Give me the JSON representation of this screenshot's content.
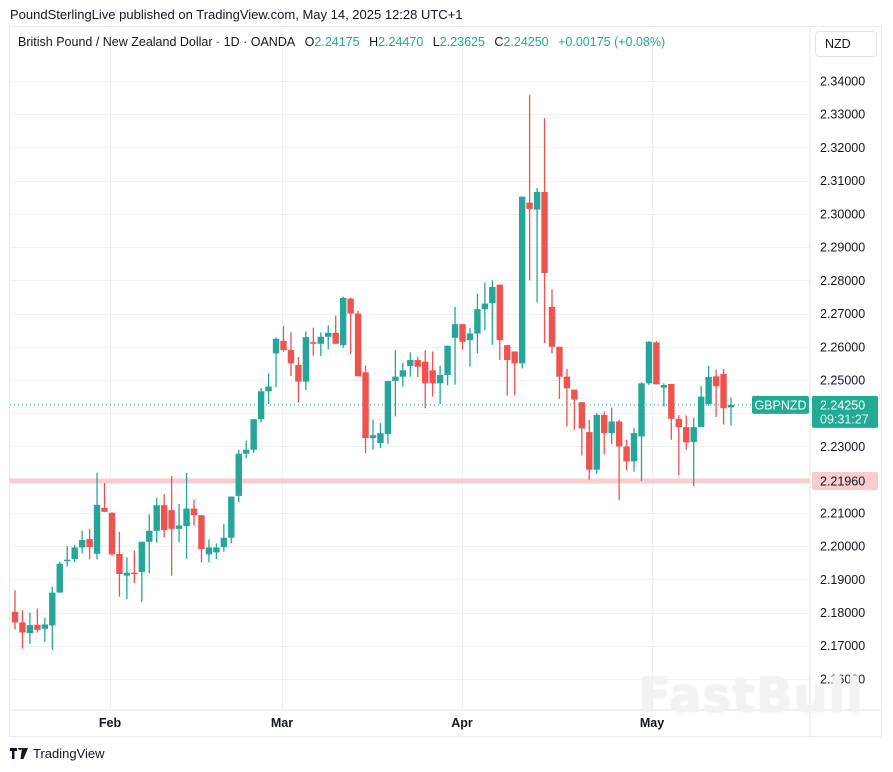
{
  "published": "PoundSterlingLive published on TradingView.com, May 14, 2025 12:28 UTC+1",
  "legend": {
    "title": "British Pound / New Zealand Dollar · 1D · OANDA",
    "o_label": "O",
    "o_value": "2.24175",
    "h_label": "H",
    "h_value": "2.24470",
    "l_label": "L",
    "l_value": "2.23625",
    "c_label": "C",
    "c_value": "2.24250",
    "change": "+0.00175 (+0.08%)"
  },
  "currency_button": "NZD",
  "price_axis": {
    "ticks": [
      "2.34000",
      "2.33000",
      "2.32000",
      "2.31000",
      "2.30000",
      "2.29000",
      "2.28000",
      "2.27000",
      "2.26000",
      "2.25000",
      "2.23000",
      "2.21000",
      "2.20000",
      "2.19000",
      "2.18000",
      "2.17000",
      "2.16000"
    ]
  },
  "time_axis": {
    "labels": [
      "Feb",
      "Mar",
      "Apr",
      "May"
    ]
  },
  "last_price": {
    "symbol": "GBPNZD",
    "price": "2.24250",
    "countdown": "09:31:27"
  },
  "horizontal_line": {
    "price": "2.21960"
  },
  "colors": {
    "up": "#26a69a",
    "down": "#ef5350",
    "hline": "#f9cdd0",
    "grid": "#f0f1f3",
    "accent": "#22ab94"
  },
  "footer": {
    "brand": "TradingView"
  },
  "watermark": "FastBull",
  "chart_data": {
    "type": "candlestick",
    "title": "British Pound / New Zealand Dollar · 1D · OANDA",
    "xlabel": "",
    "ylabel": "NZD",
    "ylim": [
      2.155,
      2.345
    ],
    "grid": true,
    "x_tick_labels": [
      "Feb",
      "Mar",
      "Apr",
      "May"
    ],
    "annotations": [
      {
        "type": "hline",
        "value": 2.2196,
        "label": "2.21960"
      },
      {
        "type": "last_price",
        "value": 2.2425,
        "label": "GBPNZD 2.24250"
      }
    ],
    "candles": [
      {
        "o": 2.1802,
        "h": 2.1867,
        "l": 2.1749,
        "c": 2.177
      },
      {
        "o": 2.177,
        "h": 2.1807,
        "l": 2.1691,
        "c": 2.174
      },
      {
        "o": 2.1738,
        "h": 2.18,
        "l": 2.1706,
        "c": 2.1762
      },
      {
        "o": 2.1763,
        "h": 2.1812,
        "l": 2.174,
        "c": 2.1748
      },
      {
        "o": 2.1751,
        "h": 2.1785,
        "l": 2.1711,
        "c": 2.1764
      },
      {
        "o": 2.1761,
        "h": 2.1878,
        "l": 2.1688,
        "c": 2.186
      },
      {
        "o": 2.186,
        "h": 2.1953,
        "l": 2.186,
        "c": 2.1947
      },
      {
        "o": 2.1955,
        "h": 2.2,
        "l": 2.1938,
        "c": 2.1959
      },
      {
        "o": 2.1961,
        "h": 2.2004,
        "l": 2.1951,
        "c": 2.1996
      },
      {
        "o": 2.1996,
        "h": 2.2046,
        "l": 2.1978,
        "c": 2.2018
      },
      {
        "o": 2.2021,
        "h": 2.2052,
        "l": 2.196,
        "c": 2.1997
      },
      {
        "o": 2.1977,
        "h": 2.2221,
        "l": 2.196,
        "c": 2.2124
      },
      {
        "o": 2.2115,
        "h": 2.219,
        "l": 2.2108,
        "c": 2.2103
      },
      {
        "o": 2.21,
        "h": 2.2102,
        "l": 2.1971,
        "c": 2.1975
      },
      {
        "o": 2.1976,
        "h": 2.2043,
        "l": 2.1848,
        "c": 2.1916
      },
      {
        "o": 2.1911,
        "h": 2.1966,
        "l": 2.184,
        "c": 2.192
      },
      {
        "o": 2.192,
        "h": 2.1987,
        "l": 2.1889,
        "c": 2.1916
      },
      {
        "o": 2.1922,
        "h": 2.2002,
        "l": 2.1832,
        "c": 2.2013
      },
      {
        "o": 2.2013,
        "h": 2.2095,
        "l": 2.1918,
        "c": 2.2046
      },
      {
        "o": 2.2046,
        "h": 2.2145,
        "l": 2.201,
        "c": 2.2123
      },
      {
        "o": 2.2123,
        "h": 2.2157,
        "l": 2.2026,
        "c": 2.2048
      },
      {
        "o": 2.2108,
        "h": 2.2211,
        "l": 2.1911,
        "c": 2.2052
      },
      {
        "o": 2.2052,
        "h": 2.2127,
        "l": 2.2012,
        "c": 2.2062
      },
      {
        "o": 2.206,
        "h": 2.222,
        "l": 2.1962,
        "c": 2.2113
      },
      {
        "o": 2.2113,
        "h": 2.214,
        "l": 2.2062,
        "c": 2.2093
      },
      {
        "o": 2.2093,
        "h": 2.2042,
        "l": 2.1951,
        "c": 2.1991
      },
      {
        "o": 2.1975,
        "h": 2.202,
        "l": 2.1951,
        "c": 2.1996
      },
      {
        "o": 2.1981,
        "h": 2.2008,
        "l": 2.1961,
        "c": 2.1996
      },
      {
        "o": 2.1997,
        "h": 2.2067,
        "l": 2.1983,
        "c": 2.2025
      },
      {
        "o": 2.2025,
        "h": 2.211,
        "l": 2.2008,
        "c": 2.2149
      },
      {
        "o": 2.2151,
        "h": 2.229,
        "l": 2.2132,
        "c": 2.2278
      },
      {
        "o": 2.2278,
        "h": 2.2318,
        "l": 2.2264,
        "c": 2.229
      },
      {
        "o": 2.229,
        "h": 2.2376,
        "l": 2.228,
        "c": 2.2382
      },
      {
        "o": 2.2382,
        "h": 2.2476,
        "l": 2.2372,
        "c": 2.2466
      },
      {
        "o": 2.2466,
        "h": 2.252,
        "l": 2.2428,
        "c": 2.248
      },
      {
        "o": 2.258,
        "h": 2.2628,
        "l": 2.2478,
        "c": 2.2624
      },
      {
        "o": 2.2618,
        "h": 2.2663,
        "l": 2.2585,
        "c": 2.259
      },
      {
        "o": 2.259,
        "h": 2.2644,
        "l": 2.2512,
        "c": 2.255
      },
      {
        "o": 2.2545,
        "h": 2.2569,
        "l": 2.2432,
        "c": 2.2495
      },
      {
        "o": 2.2495,
        "h": 2.2646,
        "l": 2.247,
        "c": 2.2629
      },
      {
        "o": 2.2614,
        "h": 2.2657,
        "l": 2.2573,
        "c": 2.2609
      },
      {
        "o": 2.2609,
        "h": 2.2643,
        "l": 2.2572,
        "c": 2.263
      },
      {
        "o": 2.263,
        "h": 2.2665,
        "l": 2.2592,
        "c": 2.2642
      },
      {
        "o": 2.2642,
        "h": 2.2694,
        "l": 2.262,
        "c": 2.2609
      },
      {
        "o": 2.2605,
        "h": 2.2751,
        "l": 2.2597,
        "c": 2.2747
      },
      {
        "o": 2.2745,
        "h": 2.2748,
        "l": 2.2578,
        "c": 2.27
      },
      {
        "o": 2.27,
        "h": 2.2708,
        "l": 2.2554,
        "c": 2.2511
      },
      {
        "o": 2.2523,
        "h": 2.2544,
        "l": 2.228,
        "c": 2.2325
      },
      {
        "o": 2.2325,
        "h": 2.2381,
        "l": 2.229,
        "c": 2.2334
      },
      {
        "o": 2.231,
        "h": 2.237,
        "l": 2.2295,
        "c": 2.234
      },
      {
        "o": 2.2337,
        "h": 2.2475,
        "l": 2.2308,
        "c": 2.2497
      },
      {
        "o": 2.2497,
        "h": 2.259,
        "l": 2.239,
        "c": 2.251
      },
      {
        "o": 2.251,
        "h": 2.2552,
        "l": 2.248,
        "c": 2.2529
      },
      {
        "o": 2.2542,
        "h": 2.2583,
        "l": 2.251,
        "c": 2.256
      },
      {
        "o": 2.256,
        "h": 2.257,
        "l": 2.2509,
        "c": 2.254
      },
      {
        "o": 2.2555,
        "h": 2.2589,
        "l": 2.2415,
        "c": 2.249
      },
      {
        "o": 2.2529,
        "h": 2.2586,
        "l": 2.245,
        "c": 2.249
      },
      {
        "o": 2.249,
        "h": 2.2543,
        "l": 2.2428,
        "c": 2.2515
      },
      {
        "o": 2.2515,
        "h": 2.2601,
        "l": 2.2484,
        "c": 2.2603
      },
      {
        "o": 2.2627,
        "h": 2.272,
        "l": 2.2486,
        "c": 2.2668
      },
      {
        "o": 2.2668,
        "h": 2.2668,
        "l": 2.2591,
        "c": 2.2615
      },
      {
        "o": 2.262,
        "h": 2.2656,
        "l": 2.254,
        "c": 2.264
      },
      {
        "o": 2.264,
        "h": 2.276,
        "l": 2.258,
        "c": 2.2713
      },
      {
        "o": 2.2713,
        "h": 2.2793,
        "l": 2.265,
        "c": 2.273
      },
      {
        "o": 2.2731,
        "h": 2.28,
        "l": 2.2606,
        "c": 2.278
      },
      {
        "o": 2.2787,
        "h": 2.2763,
        "l": 2.256,
        "c": 2.262
      },
      {
        "o": 2.2605,
        "h": 2.259,
        "l": 2.2453,
        "c": 2.256
      },
      {
        "o": 2.2586,
        "h": 2.2584,
        "l": 2.2453,
        "c": 2.255
      },
      {
        "o": 2.255,
        "h": 2.2788,
        "l": 2.2535,
        "c": 2.3052
      },
      {
        "o": 2.3034,
        "h": 2.3358,
        "l": 2.28,
        "c": 2.3015
      },
      {
        "o": 2.3013,
        "h": 2.3078,
        "l": 2.2733,
        "c": 2.3066
      },
      {
        "o": 2.3066,
        "h": 2.3288,
        "l": 2.2611,
        "c": 2.2822
      },
      {
        "o": 2.272,
        "h": 2.2773,
        "l": 2.258,
        "c": 2.26
      },
      {
        "o": 2.26,
        "h": 2.2584,
        "l": 2.2443,
        "c": 2.251
      },
      {
        "o": 2.251,
        "h": 2.2533,
        "l": 2.236,
        "c": 2.2475
      },
      {
        "o": 2.2471,
        "h": 2.247,
        "l": 2.235,
        "c": 2.2441
      },
      {
        "o": 2.2433,
        "h": 2.2415,
        "l": 2.2273,
        "c": 2.2354
      },
      {
        "o": 2.2343,
        "h": 2.238,
        "l": 2.22,
        "c": 2.223
      },
      {
        "o": 2.223,
        "h": 2.24,
        "l": 2.2218,
        "c": 2.2395
      },
      {
        "o": 2.2395,
        "h": 2.2405,
        "l": 2.2276,
        "c": 2.234
      },
      {
        "o": 2.234,
        "h": 2.2417,
        "l": 2.2307,
        "c": 2.2375
      },
      {
        "o": 2.2375,
        "h": 2.238,
        "l": 2.2138,
        "c": 2.23
      },
      {
        "o": 2.23,
        "h": 2.232,
        "l": 2.2228,
        "c": 2.2255
      },
      {
        "o": 2.2255,
        "h": 2.2355,
        "l": 2.2224,
        "c": 2.234
      },
      {
        "o": 2.233,
        "h": 2.2493,
        "l": 2.2196,
        "c": 2.249
      },
      {
        "o": 2.249,
        "h": 2.2617,
        "l": 2.2485,
        "c": 2.2615
      },
      {
        "o": 2.2613,
        "h": 2.2617,
        "l": 2.2493,
        "c": 2.2487
      },
      {
        "o": 2.2477,
        "h": 2.249,
        "l": 2.242,
        "c": 2.2485
      },
      {
        "o": 2.2488,
        "h": 2.246,
        "l": 2.232,
        "c": 2.2383
      },
      {
        "o": 2.2383,
        "h": 2.2394,
        "l": 2.2213,
        "c": 2.2358
      },
      {
        "o": 2.2358,
        "h": 2.2393,
        "l": 2.229,
        "c": 2.2312
      },
      {
        "o": 2.2313,
        "h": 2.2386,
        "l": 2.218,
        "c": 2.2358
      },
      {
        "o": 2.2358,
        "h": 2.2482,
        "l": 2.2368,
        "c": 2.245
      },
      {
        "o": 2.2428,
        "h": 2.2543,
        "l": 2.2422,
        "c": 2.2509
      },
      {
        "o": 2.2511,
        "h": 2.2531,
        "l": 2.2389,
        "c": 2.2481
      },
      {
        "o": 2.2518,
        "h": 2.2533,
        "l": 2.2366,
        "c": 2.2415
      },
      {
        "o": 2.24175,
        "h": 2.2447,
        "l": 2.23625,
        "c": 2.2425
      }
    ]
  }
}
